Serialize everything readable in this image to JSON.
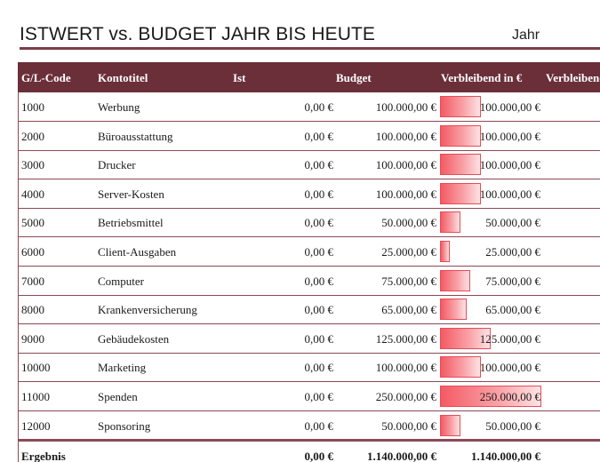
{
  "header": {
    "title": "ISTWERT vs. BUDGET JAHR BIS HEUTE",
    "year_label": "Jahr"
  },
  "colors": {
    "header_bg": "#6b2f3a",
    "rule": "#7b3c46",
    "databar": "#f45a64"
  },
  "table": {
    "columns": [
      "G/L-Code",
      "Kontotitel",
      "Ist",
      "Budget",
      "Verbleibend in €",
      "Verbleibend"
    ],
    "rows": [
      {
        "code": "1000",
        "title": "Werbung",
        "ist": "0,00 €",
        "budget": "100.000,00 €",
        "remaining": "100.000,00 €",
        "remaining_value": 100000
      },
      {
        "code": "2000",
        "title": "Büroausstattung",
        "ist": "0,00 €",
        "budget": "100.000,00 €",
        "remaining": "100.000,00 €",
        "remaining_value": 100000
      },
      {
        "code": "3000",
        "title": "Drucker",
        "ist": "0,00 €",
        "budget": "100.000,00 €",
        "remaining": "100.000,00 €",
        "remaining_value": 100000
      },
      {
        "code": "4000",
        "title": "Server-Kosten",
        "ist": "0,00 €",
        "budget": "100.000,00 €",
        "remaining": "100.000,00 €",
        "remaining_value": 100000
      },
      {
        "code": "5000",
        "title": "Betriebsmittel",
        "ist": "0,00 €",
        "budget": "50.000,00 €",
        "remaining": "50.000,00 €",
        "remaining_value": 50000
      },
      {
        "code": "6000",
        "title": "Client-Ausgaben",
        "ist": "0,00 €",
        "budget": "25.000,00 €",
        "remaining": "25.000,00 €",
        "remaining_value": 25000
      },
      {
        "code": "7000",
        "title": "Computer",
        "ist": "0,00 €",
        "budget": "75.000,00 €",
        "remaining": "75.000,00 €",
        "remaining_value": 75000
      },
      {
        "code": "8000",
        "title": "Krankenversicherung",
        "ist": "0,00 €",
        "budget": "65.000,00 €",
        "remaining": "65.000,00 €",
        "remaining_value": 65000
      },
      {
        "code": "9000",
        "title": "Gebäudekosten",
        "ist": "0,00 €",
        "budget": "125.000,00 €",
        "remaining": "125.000,00 €",
        "remaining_value": 125000
      },
      {
        "code": "10000",
        "title": "Marketing",
        "ist": "0,00 €",
        "budget": "100.000,00 €",
        "remaining": "100.000,00 €",
        "remaining_value": 100000
      },
      {
        "code": "11000",
        "title": "Spenden",
        "ist": "0,00 €",
        "budget": "250.000,00 €",
        "remaining": "250.000,00 €",
        "remaining_value": 250000
      },
      {
        "code": "12000",
        "title": "Sponsoring",
        "ist": "0,00 €",
        "budget": "50.000,00 €",
        "remaining": "50.000,00 €",
        "remaining_value": 50000
      }
    ],
    "total": {
      "label": "Ergebnis",
      "ist": "0,00 €",
      "budget": "1.140.000,00 €",
      "remaining": "1.140.000,00 €"
    }
  }
}
